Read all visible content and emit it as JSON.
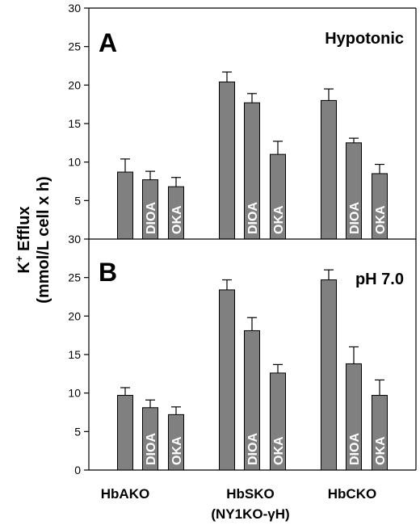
{
  "chart_data": [
    {
      "panel": "A",
      "type": "bar",
      "condition": "Hypotonic",
      "categories": [
        "HbAKO",
        "HbSKO",
        "HbCKO"
      ],
      "ylim": [
        0,
        30
      ],
      "yticks": [
        0,
        5,
        10,
        15,
        20,
        25,
        30
      ],
      "series": [
        {
          "bar_label": "",
          "values": [
            8.7,
            20.4,
            18.0
          ],
          "errors": [
            1.7,
            1.3,
            1.5
          ]
        },
        {
          "bar_label": "DIOA",
          "values": [
            7.7,
            17.7,
            12.5
          ],
          "errors": [
            1.1,
            1.2,
            0.6
          ]
        },
        {
          "bar_label": "OKA",
          "values": [
            6.8,
            11.0,
            8.5
          ],
          "errors": [
            1.2,
            1.7,
            1.2
          ]
        }
      ]
    },
    {
      "panel": "B",
      "type": "bar",
      "condition": "pH 7.0",
      "categories": [
        "HbAKO",
        "HbSKO",
        "HbCKO"
      ],
      "ylim": [
        0,
        30
      ],
      "yticks": [
        0,
        5,
        10,
        15,
        20,
        25,
        30
      ],
      "series": [
        {
          "bar_label": "",
          "values": [
            9.7,
            23.4,
            24.7
          ],
          "errors": [
            1.0,
            1.3,
            1.3
          ]
        },
        {
          "bar_label": "DIOA",
          "values": [
            8.1,
            18.1,
            13.8
          ],
          "errors": [
            1.0,
            1.7,
            2.2
          ]
        },
        {
          "bar_label": "OKA",
          "values": [
            7.2,
            12.6,
            9.7
          ],
          "errors": [
            1.0,
            1.1,
            2.0
          ]
        }
      ]
    }
  ],
  "x_labels": {
    "groups": [
      "HbAKO",
      "HbSKO",
      "HbCKO"
    ],
    "sub_label": "(NY1KO-γH)"
  },
  "y_axis": {
    "label_prefix": "K",
    "label_sup": "+",
    "label_main": " Efflux",
    "label_units": "(mmol/L cell x h)"
  },
  "colors": {
    "bar_fill": "#808080",
    "bar_stroke": "#000000",
    "bar_text": "#ffffff"
  }
}
